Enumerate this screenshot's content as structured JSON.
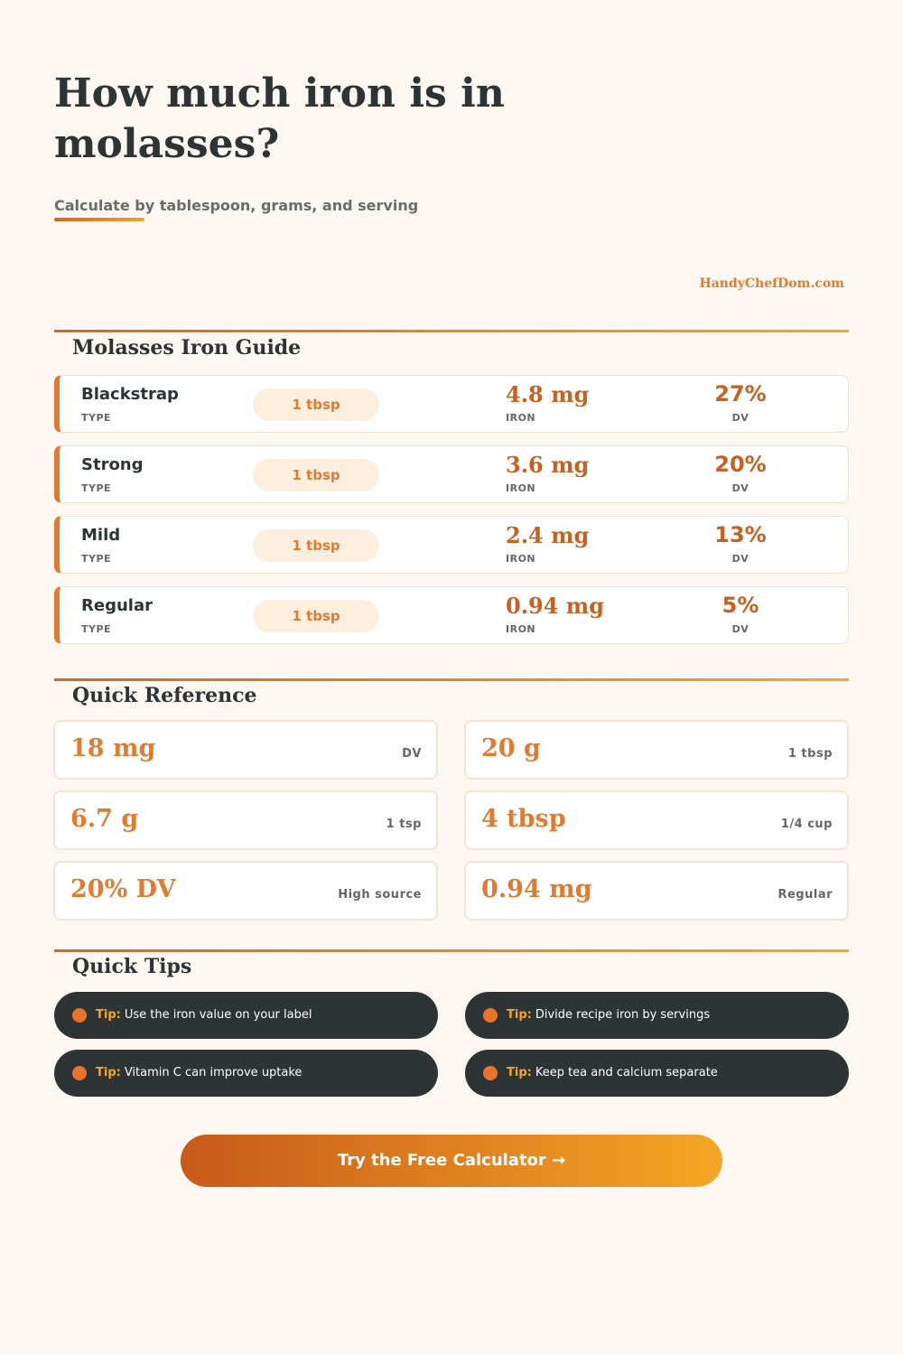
{
  "header": {
    "title": "How much iron is in molasses?",
    "subtitle": "Calculate by tablespoon, grams, and serving",
    "brand": "HandyChefDom.com"
  },
  "guide": {
    "title": "Molasses Iron Guide",
    "rows": [
      {
        "type": "Blackstrap",
        "type_label": "TYPE",
        "serving": "1 tbsp",
        "iron": "4.8 mg",
        "iron_label": "IRON",
        "dv": "27%",
        "dv_label": "DV"
      },
      {
        "type": "Strong",
        "type_label": "TYPE",
        "serving": "1 tbsp",
        "iron": "3.6 mg",
        "iron_label": "IRON",
        "dv": "20%",
        "dv_label": "DV"
      },
      {
        "type": "Mild",
        "type_label": "TYPE",
        "serving": "1 tbsp",
        "iron": "2.4 mg",
        "iron_label": "IRON",
        "dv": "13%",
        "dv_label": "DV"
      },
      {
        "type": "Regular",
        "type_label": "TYPE",
        "serving": "1 tbsp",
        "iron": "0.94 mg",
        "iron_label": "IRON",
        "dv": "5%",
        "dv_label": "DV"
      }
    ]
  },
  "reference": {
    "title": "Quick Reference",
    "items": [
      {
        "value": "18 mg",
        "label": "DV"
      },
      {
        "value": "20 g",
        "label": "1 tbsp"
      },
      {
        "value": "6.7 g",
        "label": "1 tsp"
      },
      {
        "value": "4 tbsp",
        "label": "1/4 cup"
      },
      {
        "value": "20% DV",
        "label": "High source"
      },
      {
        "value": "0.94 mg",
        "label": "Regular"
      }
    ]
  },
  "tips": {
    "title": "Quick Tips",
    "items": [
      {
        "prefix": "Tip:",
        "text": "Use the iron value on your label"
      },
      {
        "prefix": "Tip:",
        "text": "Divide recipe iron by servings"
      },
      {
        "prefix": "Tip:",
        "text": "Vitamin C can improve uptake"
      },
      {
        "prefix": "Tip:",
        "text": "Keep tea and calcium separate"
      }
    ]
  },
  "cta": "Try the Free Calculator →"
}
